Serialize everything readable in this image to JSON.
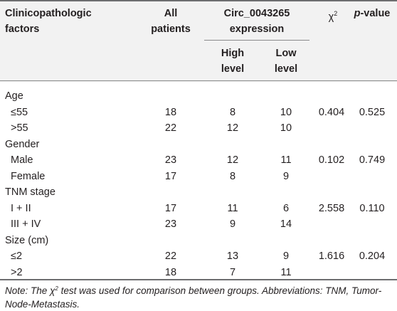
{
  "header": {
    "factors_line1": "Clinicopathologic",
    "factors_line2": "factors",
    "all_line1": "All",
    "all_line2": "patients",
    "circ_line1": "Circ_0043265",
    "circ_line2": "expression",
    "high_line1": "High",
    "high_line2": "level",
    "low_line1": "Low",
    "low_line2": "level",
    "chi_symbol": "χ",
    "chi_exp": "2",
    "p_italic": "p",
    "p_rest": "-value"
  },
  "rows": [
    {
      "label": "Age",
      "all": "",
      "high": "",
      "low": "",
      "chi": "",
      "p": ""
    },
    {
      "label": "≤55",
      "all": "18",
      "high": "8",
      "low": "10",
      "chi": "0.404",
      "p": "0.525"
    },
    {
      "label": ">55",
      "all": "22",
      "high": "12",
      "low": "10",
      "chi": "",
      "p": ""
    },
    {
      "label": "Gender",
      "all": "",
      "high": "",
      "low": "",
      "chi": "",
      "p": ""
    },
    {
      "label": "Male",
      "all": "23",
      "high": "12",
      "low": "11",
      "chi": "0.102",
      "p": "0.749"
    },
    {
      "label": "Female",
      "all": "17",
      "high": "8",
      "low": "9",
      "chi": "",
      "p": ""
    },
    {
      "label": "TNM stage",
      "all": "",
      "high": "",
      "low": "",
      "chi": "",
      "p": ""
    },
    {
      "label": "I + II",
      "all": "17",
      "high": "11",
      "low": "6",
      "chi": "2.558",
      "p": "0.110"
    },
    {
      "label": "III + IV",
      "all": "23",
      "high": "9",
      "low": "14",
      "chi": "",
      "p": ""
    },
    {
      "label": "Size (cm)",
      "all": "",
      "high": "",
      "low": "",
      "chi": "",
      "p": ""
    },
    {
      "label": "≤2",
      "all": "22",
      "high": "13",
      "low": "9",
      "chi": "1.616",
      "p": "0.204"
    },
    {
      "label": ">2",
      "all": "18",
      "high": "7",
      "low": "11",
      "chi": "",
      "p": ""
    }
  ],
  "note": {
    "part1": "Note: The χ",
    "exp": "2",
    "part2": " test was used for comparison between groups. Abbreviations: TNM, Tumor-Node-Metastasis."
  },
  "colors": {
    "header_bg": "#f2f2f2",
    "rule": "#6d6e70",
    "text": "#231f20"
  }
}
